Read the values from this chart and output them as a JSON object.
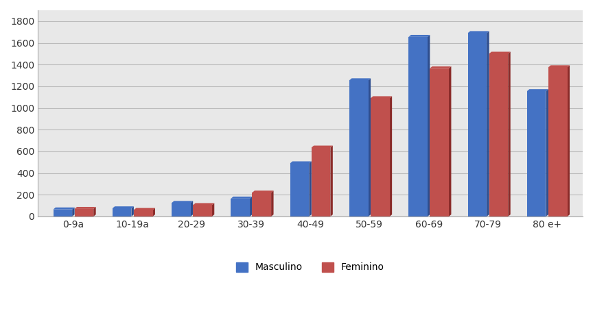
{
  "categories": [
    "0-9a",
    "10-19a",
    "20-29",
    "30-39",
    "40-49",
    "50-59",
    "60-69",
    "70-79",
    "80 e+"
  ],
  "masculino": [
    65,
    75,
    125,
    165,
    490,
    1255,
    1655,
    1690,
    1155
  ],
  "feminino": [
    70,
    60,
    105,
    220,
    635,
    1090,
    1365,
    1500,
    1375
  ],
  "color_masculino": "#4472C4",
  "color_masculino_dark": "#2E4E8F",
  "color_feminino": "#C0504D",
  "color_feminino_dark": "#8B2C2A",
  "legend_masculino": "Masculino",
  "legend_feminino": "Feminino",
  "ylim": [
    0,
    1900
  ],
  "yticks": [
    0,
    200,
    400,
    600,
    800,
    1000,
    1200,
    1400,
    1600,
    1800
  ],
  "plot_bg_color": "#E8E8E8",
  "fig_bg_color": "#FFFFFF",
  "grid_color": "#BBBBBB",
  "spine_color": "#AAAAAA"
}
